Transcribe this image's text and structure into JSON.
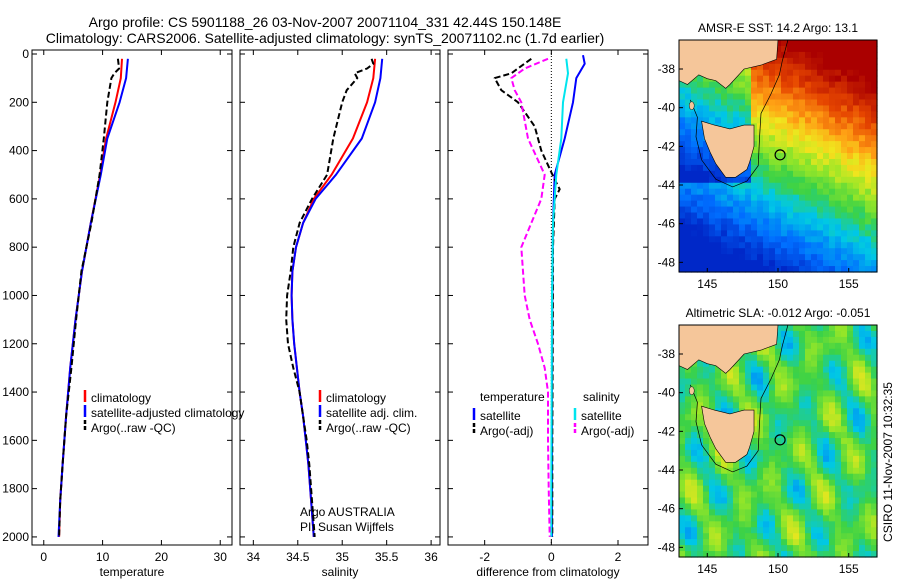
{
  "title_line1": "Argo profile: CS 5901188_26 03-Nov-2007 20071104_331 42.44S 150.148E",
  "title_line2": "Climatology: CARS2006. Satellite-adjusted climatology: synTS_20071102.nc (1.7d earlier)",
  "side_text": "CSIRO 11-Nov-2007 10:32:35",
  "depth_ticks": [
    "0",
    "200",
    "400",
    "600",
    "800",
    "1000",
    "1200",
    "1400",
    "1600",
    "1800",
    "2000"
  ],
  "colors": {
    "clim": "#ff0000",
    "sat": "#0000ff",
    "argo": "#000000",
    "sat_sal": "#00e5ee",
    "argo_sal": "#ff00ff"
  },
  "chart_data": [
    {
      "type": "line",
      "xlabel": "temperature",
      "xticks": [
        "0",
        "10",
        "20",
        "30"
      ],
      "xlim": [
        -2,
        32
      ],
      "ylim": [
        0,
        2050
      ],
      "y_reversed": true,
      "legend": [
        "climatology",
        "satellite-adjusted climatology",
        "Argo(..raw -QC)"
      ],
      "series": [
        {
          "name": "climatology",
          "color": "#ff0000",
          "dash": "solid",
          "points": [
            [
              13.3,
              20
            ],
            [
              13.1,
              100
            ],
            [
              12.2,
              200
            ],
            [
              10.6,
              350
            ],
            [
              9.6,
              500
            ],
            [
              8.0,
              700
            ],
            [
              6.5,
              900
            ],
            [
              5.4,
              1100
            ],
            [
              4.5,
              1300
            ],
            [
              3.8,
              1500
            ],
            [
              3.2,
              1700
            ],
            [
              2.8,
              1850
            ],
            [
              2.6,
              2000
            ]
          ]
        },
        {
          "name": "satellite-adjusted climatology",
          "color": "#0000ff",
          "dash": "solid",
          "points": [
            [
              14.3,
              20
            ],
            [
              14.0,
              100
            ],
            [
              12.9,
              200
            ],
            [
              10.8,
              350
            ],
            [
              9.7,
              500
            ],
            [
              8.0,
              700
            ],
            [
              6.5,
              900
            ],
            [
              5.4,
              1100
            ],
            [
              4.5,
              1300
            ],
            [
              3.8,
              1500
            ],
            [
              3.2,
              1700
            ],
            [
              2.8,
              1850
            ],
            [
              2.5,
              2000
            ]
          ]
        },
        {
          "name": "Argo(..raw -QC)",
          "color": "#000000",
          "dash": "dash",
          "points": [
            [
              12.6,
              20
            ],
            [
              12.8,
              60
            ],
            [
              12.0,
              80
            ],
            [
              11.5,
              100
            ],
            [
              10.8,
              200
            ],
            [
              10.2,
              350
            ],
            [
              9.5,
              500
            ],
            [
              8.1,
              700
            ],
            [
              6.4,
              900
            ],
            [
              5.5,
              1100
            ],
            [
              4.7,
              1300
            ],
            [
              3.8,
              1500
            ],
            [
              3.2,
              1700
            ],
            [
              2.8,
              1850
            ],
            [
              2.6,
              2000
            ]
          ]
        }
      ]
    },
    {
      "type": "line",
      "xlabel": "salinity",
      "xticks": [
        "34",
        "34.5",
        "35",
        "35.5",
        "36"
      ],
      "xlim": [
        33.85,
        36.1
      ],
      "ylim": [
        0,
        2050
      ],
      "y_reversed": true,
      "legend": [
        "climatology",
        "satellite adj. clim.",
        "Argo(..raw -QC)"
      ],
      "annotation": [
        "Argo AUSTRALIA",
        "PI: Susan Wijffels"
      ],
      "series": [
        {
          "name": "climatology",
          "color": "#ff0000",
          "dash": "solid",
          "points": [
            [
              35.37,
              20
            ],
            [
              35.35,
              100
            ],
            [
              35.28,
              200
            ],
            [
              35.12,
              350
            ],
            [
              34.88,
              500
            ],
            [
              34.68,
              600
            ],
            [
              34.56,
              700
            ],
            [
              34.48,
              800
            ],
            [
              34.44,
              900
            ],
            [
              34.43,
              1000
            ],
            [
              34.44,
              1100
            ],
            [
              34.46,
              1200
            ],
            [
              34.49,
              1300
            ],
            [
              34.52,
              1400
            ],
            [
              34.56,
              1500
            ],
            [
              34.59,
              1600
            ],
            [
              34.62,
              1700
            ],
            [
              34.64,
              1800
            ],
            [
              34.66,
              1900
            ],
            [
              34.68,
              2000
            ]
          ]
        },
        {
          "name": "satellite adj. clim.",
          "color": "#0000ff",
          "dash": "solid",
          "points": [
            [
              35.45,
              20
            ],
            [
              35.43,
              100
            ],
            [
              35.37,
              200
            ],
            [
              35.22,
              350
            ],
            [
              34.93,
              500
            ],
            [
              34.7,
              600
            ],
            [
              34.56,
              700
            ],
            [
              34.48,
              800
            ],
            [
              34.44,
              900
            ],
            [
              34.43,
              1000
            ],
            [
              34.44,
              1100
            ],
            [
              34.46,
              1200
            ],
            [
              34.49,
              1300
            ],
            [
              34.52,
              1400
            ],
            [
              34.56,
              1500
            ],
            [
              34.59,
              1600
            ],
            [
              34.62,
              1700
            ],
            [
              34.64,
              1800
            ],
            [
              34.66,
              1900
            ],
            [
              34.68,
              2000
            ]
          ]
        },
        {
          "name": "Argo(..raw -QC)",
          "color": "#000000",
          "dash": "dash",
          "points": [
            [
              35.33,
              20
            ],
            [
              35.35,
              40
            ],
            [
              35.28,
              60
            ],
            [
              35.14,
              80
            ],
            [
              35.17,
              100
            ],
            [
              35.05,
              150
            ],
            [
              35.0,
              200
            ],
            [
              34.9,
              350
            ],
            [
              34.83,
              500
            ],
            [
              34.66,
              600
            ],
            [
              34.52,
              700
            ],
            [
              34.45,
              800
            ],
            [
              34.42,
              900
            ],
            [
              34.38,
              1000
            ],
            [
              34.37,
              1100
            ],
            [
              34.39,
              1200
            ],
            [
              34.45,
              1300
            ],
            [
              34.52,
              1400
            ],
            [
              34.56,
              1500
            ],
            [
              34.6,
              1600
            ],
            [
              34.63,
              1700
            ],
            [
              34.65,
              1800
            ],
            [
              34.67,
              1900
            ],
            [
              34.69,
              2000
            ]
          ]
        }
      ]
    },
    {
      "type": "line",
      "xlabel": "difference from climatology",
      "xticks": [
        "-2",
        "0",
        "2"
      ],
      "xlim": [
        -3.1,
        2.9
      ],
      "ylim": [
        0,
        2050
      ],
      "y_reversed": true,
      "legend_left_title": "temperature",
      "legend_right_title": "salinity",
      "legend_left": [
        "satellite",
        "Argo(-adj)"
      ],
      "legend_right": [
        "satellite",
        "Argo(-adj)"
      ],
      "series": [
        {
          "name": "temperature satellite",
          "color": "#0000ff",
          "dash": "solid",
          "points": [
            [
              0.95,
              5
            ],
            [
              1.0,
              40
            ],
            [
              0.75,
              100
            ],
            [
              0.65,
              200
            ],
            [
              0.4,
              350
            ],
            [
              0.1,
              500
            ],
            [
              0.05,
              700
            ],
            [
              0.03,
              1000
            ],
            [
              0.02,
              1400
            ],
            [
              0.02,
              1800
            ],
            [
              0.02,
              2000
            ]
          ]
        },
        {
          "name": "temperature Argo(-adj)",
          "color": "#000000",
          "dash": "dash",
          "points": [
            [
              -0.6,
              20
            ],
            [
              -1.2,
              80
            ],
            [
              -1.7,
              100
            ],
            [
              -1.5,
              150
            ],
            [
              -1.0,
              200
            ],
            [
              -0.5,
              300
            ],
            [
              -0.3,
              400
            ],
            [
              0.1,
              520
            ],
            [
              0.25,
              560
            ],
            [
              0.1,
              600
            ],
            [
              0.05,
              800
            ],
            [
              0.04,
              1200
            ],
            [
              0.03,
              1600
            ],
            [
              0.03,
              2000
            ]
          ]
        },
        {
          "name": "salinity satellite",
          "color": "#00e5ee",
          "dash": "solid",
          "points": [
            [
              0.45,
              20
            ],
            [
              0.5,
              80
            ],
            [
              0.35,
              200
            ],
            [
              0.3,
              350
            ],
            [
              0.15,
              500
            ],
            [
              0.05,
              700
            ],
            [
              0.02,
              1000
            ],
            [
              0.01,
              1400
            ],
            [
              0.0,
              1800
            ],
            [
              0.0,
              2000
            ]
          ]
        },
        {
          "name": "salinity Argo(-adj)",
          "color": "#ff00ff",
          "dash": "dash",
          "points": [
            [
              -0.1,
              20
            ],
            [
              -0.8,
              60
            ],
            [
              -1.2,
              100
            ],
            [
              -1.1,
              150
            ],
            [
              -0.9,
              200
            ],
            [
              -0.7,
              350
            ],
            [
              -0.2,
              500
            ],
            [
              -0.3,
              600
            ],
            [
              -0.9,
              800
            ],
            [
              -0.8,
              1000
            ],
            [
              -0.65,
              1100
            ],
            [
              -0.4,
              1200
            ],
            [
              -0.2,
              1300
            ],
            [
              -0.1,
              1400
            ],
            [
              -0.1,
              1600
            ],
            [
              -0.08,
              1800
            ],
            [
              -0.05,
              2000
            ]
          ]
        }
      ]
    },
    {
      "type": "heatmap",
      "title": "AMSR-E SST: 14.2 Argo: 13.1",
      "xticks": [
        "145",
        "150",
        "155"
      ],
      "yticks": [
        "-38",
        "-40",
        "-42",
        "-44",
        "-46",
        "-48"
      ],
      "xlim": [
        143,
        157
      ],
      "ylim": [
        -48.5,
        -36.5
      ],
      "marker": {
        "lon": 150.148,
        "lat": -42.44
      }
    },
    {
      "type": "heatmap",
      "title": "Altimetric SLA: -0.012 Argo: -0.051",
      "xticks": [
        "145",
        "150",
        "155"
      ],
      "yticks": [
        "-38",
        "-40",
        "-42",
        "-44",
        "-46",
        "-48"
      ],
      "xlim": [
        143,
        157
      ],
      "ylim": [
        -48.5,
        -36.5
      ],
      "marker": {
        "lon": 150.148,
        "lat": -42.44
      }
    }
  ]
}
